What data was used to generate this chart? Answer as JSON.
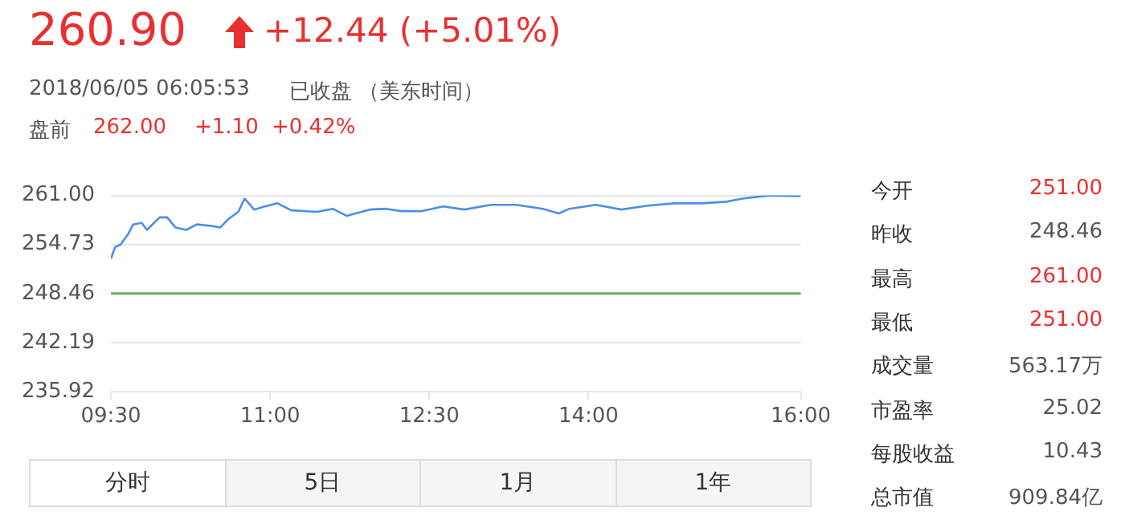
{
  "chart_data": {
    "type": "line",
    "x": [
      9.5,
      9.54,
      9.59,
      9.66,
      9.71,
      9.79,
      9.84,
      9.96,
      10.03,
      10.11,
      10.21,
      10.31,
      10.45,
      10.53,
      10.6,
      10.7,
      10.76,
      10.85,
      10.95,
      11.07,
      11.2,
      11.44,
      11.59,
      11.72,
      11.94,
      12.09,
      12.23,
      12.43,
      12.63,
      12.83,
      13.08,
      13.32,
      13.57,
      13.72,
      13.82,
      14.07,
      14.31,
      14.56,
      14.81,
      15.06,
      15.3,
      15.45,
      15.7,
      16.0
    ],
    "series": [
      {
        "color": "#4a8fe8",
        "values": [
          252.9,
          254.4,
          254.7,
          256.0,
          257.3,
          257.5,
          256.6,
          258.2,
          258.2,
          256.9,
          256.6,
          257.3,
          257.1,
          256.9,
          257.9,
          258.9,
          260.6,
          259.2,
          259.6,
          260.0,
          259.1,
          258.9,
          259.3,
          258.4,
          259.2,
          259.3,
          259.0,
          259.0,
          259.6,
          259.2,
          259.8,
          259.8,
          259.3,
          258.7,
          259.3,
          259.8,
          259.2,
          259.7,
          260.0,
          260.0,
          260.2,
          260.6,
          261.0,
          260.9
        ]
      }
    ],
    "xlim": [
      9.5,
      16.0
    ],
    "xticks": [
      {
        "value": 9.5,
        "label": "09:30"
      },
      {
        "value": 11,
        "label": "11:00"
      },
      {
        "value": 12.5,
        "label": "12:30"
      },
      {
        "value": 14,
        "label": "14:00"
      },
      {
        "value": 16,
        "label": "16:00"
      }
    ],
    "ylim": [
      235.92,
      261.0
    ],
    "yticks": [
      235.92,
      242.19,
      248.46,
      254.73,
      {
        "value": 261.0,
        "label": "261.00"
      }
    ],
    "ref_lines": [
      {
        "axis": "y",
        "value": 248.46,
        "color": "#5cb85c"
      }
    ],
    "grid": "y",
    "marker": "none",
    "line_style": "solid",
    "legend": false,
    "annotations": [
      "260.90",
      "+12.44 (+5.01%)",
      "2018/06/05 06:05:53",
      "已收盘 （美东时间）",
      "盘前",
      "262.00",
      "+1.10",
      "+0.42%",
      "今开",
      "251.00",
      "昨收",
      "248.46",
      "最高",
      "261.00",
      "最低",
      "251.00",
      "成交量",
      "563.17万",
      "市盈率",
      "25.02",
      "每股收益",
      "10.43",
      "总市值",
      "909.84亿",
      "分时",
      "5日",
      "1月",
      "1年"
    ]
  }
}
